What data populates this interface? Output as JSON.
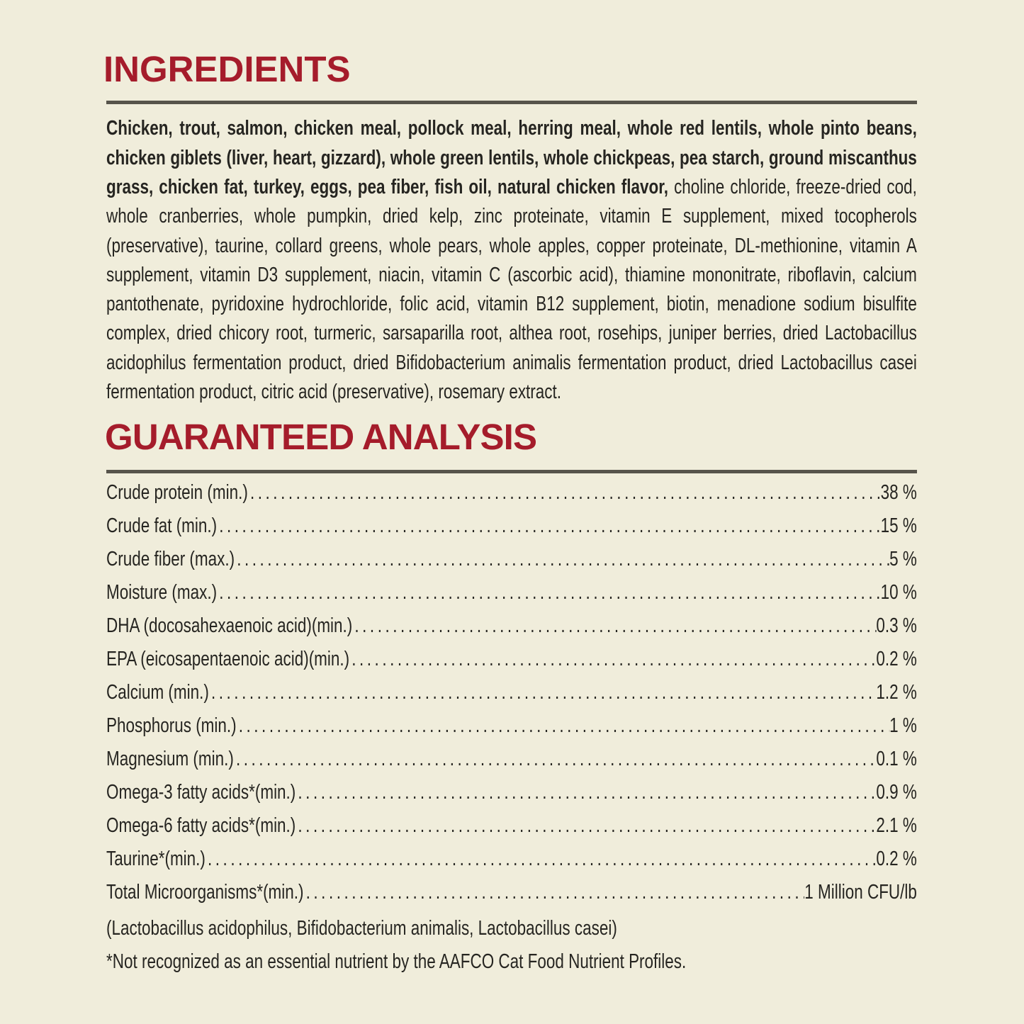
{
  "colors": {
    "background": "#F0EDDB",
    "text": "#262521",
    "heading_red": "#A51C2B",
    "rule_gray": "#57544B"
  },
  "leader_dots": ".........................................................................................................................",
  "ingredients": {
    "heading": "INGREDIENTS",
    "lines": [
      {
        "bold": "Chicken, trout, salmon, chicken meal, pollock meal, herring meal, whole red lentils, whole pinto beans,",
        "regular": ""
      },
      {
        "bold": "chicken giblets (liver, heart, gizzard), whole green lentils, whole chickpeas, pea starch, ground miscanthus",
        "regular": ""
      },
      {
        "bold": "grass, chicken fat, turkey, eggs, pea fiber, fish oil, natural chicken flavor,",
        "regular": " choline chloride, freeze-dried cod,"
      },
      {
        "bold": "",
        "regular": "whole cranberries, whole pumpkin, dried kelp, zinc proteinate, vitamin E supplement, mixed tocopherols"
      },
      {
        "bold": "",
        "regular": "(preservative), taurine, collard greens, whole pears, whole apples, copper proteinate, DL-methionine, vitamin A"
      },
      {
        "bold": "",
        "regular": "supplement, vitamin D3 supplement, niacin, vitamin C (ascorbic acid), thiamine mononitrate, riboflavin, calcium"
      },
      {
        "bold": "",
        "regular": "pantothenate, pyridoxine hydrochloride, folic acid, vitamin B12 supplement, biotin, menadione sodium bisulfite"
      },
      {
        "bold": "",
        "regular": "complex, dried chicory root, turmeric, sarsaparilla root, althea root, rosehips, juniper berries, dried Lactobacillus"
      },
      {
        "bold": "",
        "regular": "acidophilus fermentation product, dried Bifidobacterium animalis fermentation product, dried Lactobacillus casei"
      },
      {
        "bold": "",
        "regular": "fermentation product, citric acid (preservative), rosemary extract."
      }
    ]
  },
  "analysis": {
    "heading": "GUARANTEED ANALYSIS",
    "rows": [
      {
        "label": "Crude protein (min.)",
        "value": "38 %"
      },
      {
        "label": "Crude fat (min.)",
        "value": "15 %"
      },
      {
        "label": "Crude fiber (max.)",
        "value": "5 %"
      },
      {
        "label": "Moisture (max.)",
        "value": "10 %"
      },
      {
        "label": "DHA (docosahexaenoic acid)(min.)",
        "value": "0.3 %"
      },
      {
        "label": "EPA (eicosapentaenoic acid)(min.)",
        "value": "0.2 %"
      },
      {
        "label": "Calcium (min.)",
        "value": "1.2 %"
      },
      {
        "label": "Phosphorus (min.)",
        "value": "1 %"
      },
      {
        "label": "Magnesium (min.)",
        "value": "0.1 %"
      },
      {
        "label": "Omega-3 fatty acids*(min.)",
        "value": "0.9 %"
      },
      {
        "label": "Omega-6 fatty acids*(min.)",
        "value": "2.1 %"
      },
      {
        "label": "Taurine*(min.)",
        "value": "0.2 %"
      },
      {
        "label": "Total Microorganisms*(min.)",
        "value": "1 Million CFU/lb"
      }
    ],
    "note": "(Lactobacillus acidophilus, Bifidobacterium animalis, Lactobacillus casei)",
    "footnote": "*Not recognized as an essential nutrient by the AAFCO Cat Food Nutrient Profiles."
  }
}
